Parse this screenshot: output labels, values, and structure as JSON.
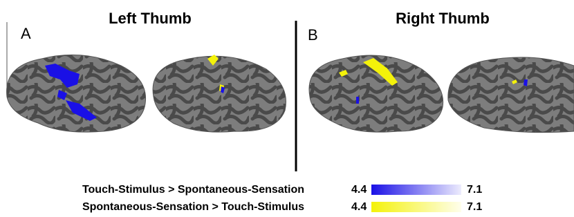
{
  "panels": [
    {
      "letter": "A",
      "title": "Left Thumb"
    },
    {
      "letter": "B",
      "title": "Right Thumb"
    }
  ],
  "legend": {
    "rows": [
      {
        "label": "Touch-Stimulus > Spontaneous-Sensation",
        "min": "4.4",
        "max": "7.1",
        "color": "#1a10e6"
      },
      {
        "label": "Spontaneous-Sensation > Touch-Stimulus",
        "min": "4.4",
        "max": "7.1",
        "color": "#f4f20a"
      }
    ]
  }
}
